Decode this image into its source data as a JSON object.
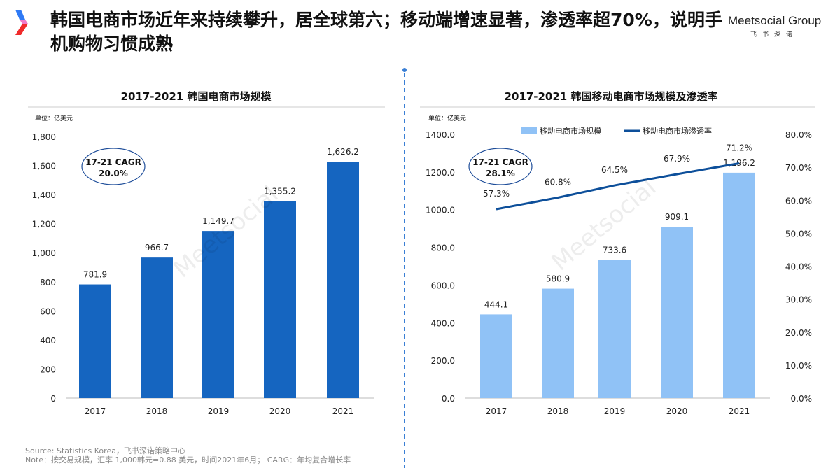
{
  "header": {
    "title": "韩国电商市场近年来持续攀升，居全球第六；移动端增速显著，渗透率超70%，说明手机购物习惯成熟",
    "brand": "Meetsocial Group",
    "brand_sub": "飞书深诺",
    "watermark": "Meetsocial Group 飞书深诺"
  },
  "footer": {
    "source": "Source: Statistics Korea，飞书深诺策略中心",
    "note": "Note：按交易规模，汇率 1,000韩元=0.88 美元，时间2021年6月； CARG：年均复合增长率"
  },
  "colors": {
    "dark_bar": "#1565c0",
    "light_bar": "#90c2f6",
    "line": "#0d4f9a",
    "divider": "#3a7fd5"
  },
  "chart_data": [
    {
      "type": "bar",
      "title": "2017-2021 韩国电商市场规模",
      "unit": "单位：亿美元",
      "categories": [
        "2017",
        "2018",
        "2019",
        "2020",
        "2021"
      ],
      "values": [
        781.9,
        966.7,
        1149.7,
        1355.2,
        1626.2
      ],
      "labels": [
        "781.9",
        "966.7",
        "1,149.7",
        "1,355.2",
        "1,626.2"
      ],
      "ylim": [
        0,
        1800
      ],
      "yticks": [
        "0",
        "200",
        "400",
        "600",
        "800",
        "1,000",
        "1,200",
        "1,400",
        "1,600",
        "1,800"
      ],
      "annotation": [
        "17-21 CAGR",
        "20.0%"
      ],
      "grid": false
    },
    {
      "type": "bar+line",
      "title": "2017-2021 韩国移动电商市场规模及渗透率",
      "unit": "单位：亿美元",
      "categories": [
        "2017",
        "2018",
        "2019",
        "2020",
        "2021"
      ],
      "series": [
        {
          "name": "移动电商市场规模",
          "type": "bar",
          "values": [
            444.1,
            580.9,
            733.6,
            909.1,
            1196.2
          ],
          "labels": [
            "444.1",
            "580.9",
            "733.6",
            "909.1",
            "1,196.2"
          ]
        },
        {
          "name": "移动电商市场渗透率",
          "type": "line",
          "values": [
            57.3,
            60.8,
            64.5,
            67.9,
            71.2
          ],
          "labels": [
            "57.3%",
            "60.8%",
            "64.5%",
            "67.9%",
            "71.2%"
          ]
        }
      ],
      "ylim": [
        0,
        1400
      ],
      "yticks": [
        "0.0",
        "200.0",
        "400.0",
        "600.0",
        "800.0",
        "1000.0",
        "1200.0",
        "1400.0"
      ],
      "y2lim": [
        0,
        80
      ],
      "y2ticks": [
        "0.0%",
        "10.0%",
        "20.0%",
        "30.0%",
        "40.0%",
        "50.0%",
        "60.0%",
        "70.0%",
        "80.0%"
      ],
      "legend": "top",
      "annotation": [
        "17-21 CAGR",
        "28.1%"
      ],
      "grid": false
    }
  ]
}
